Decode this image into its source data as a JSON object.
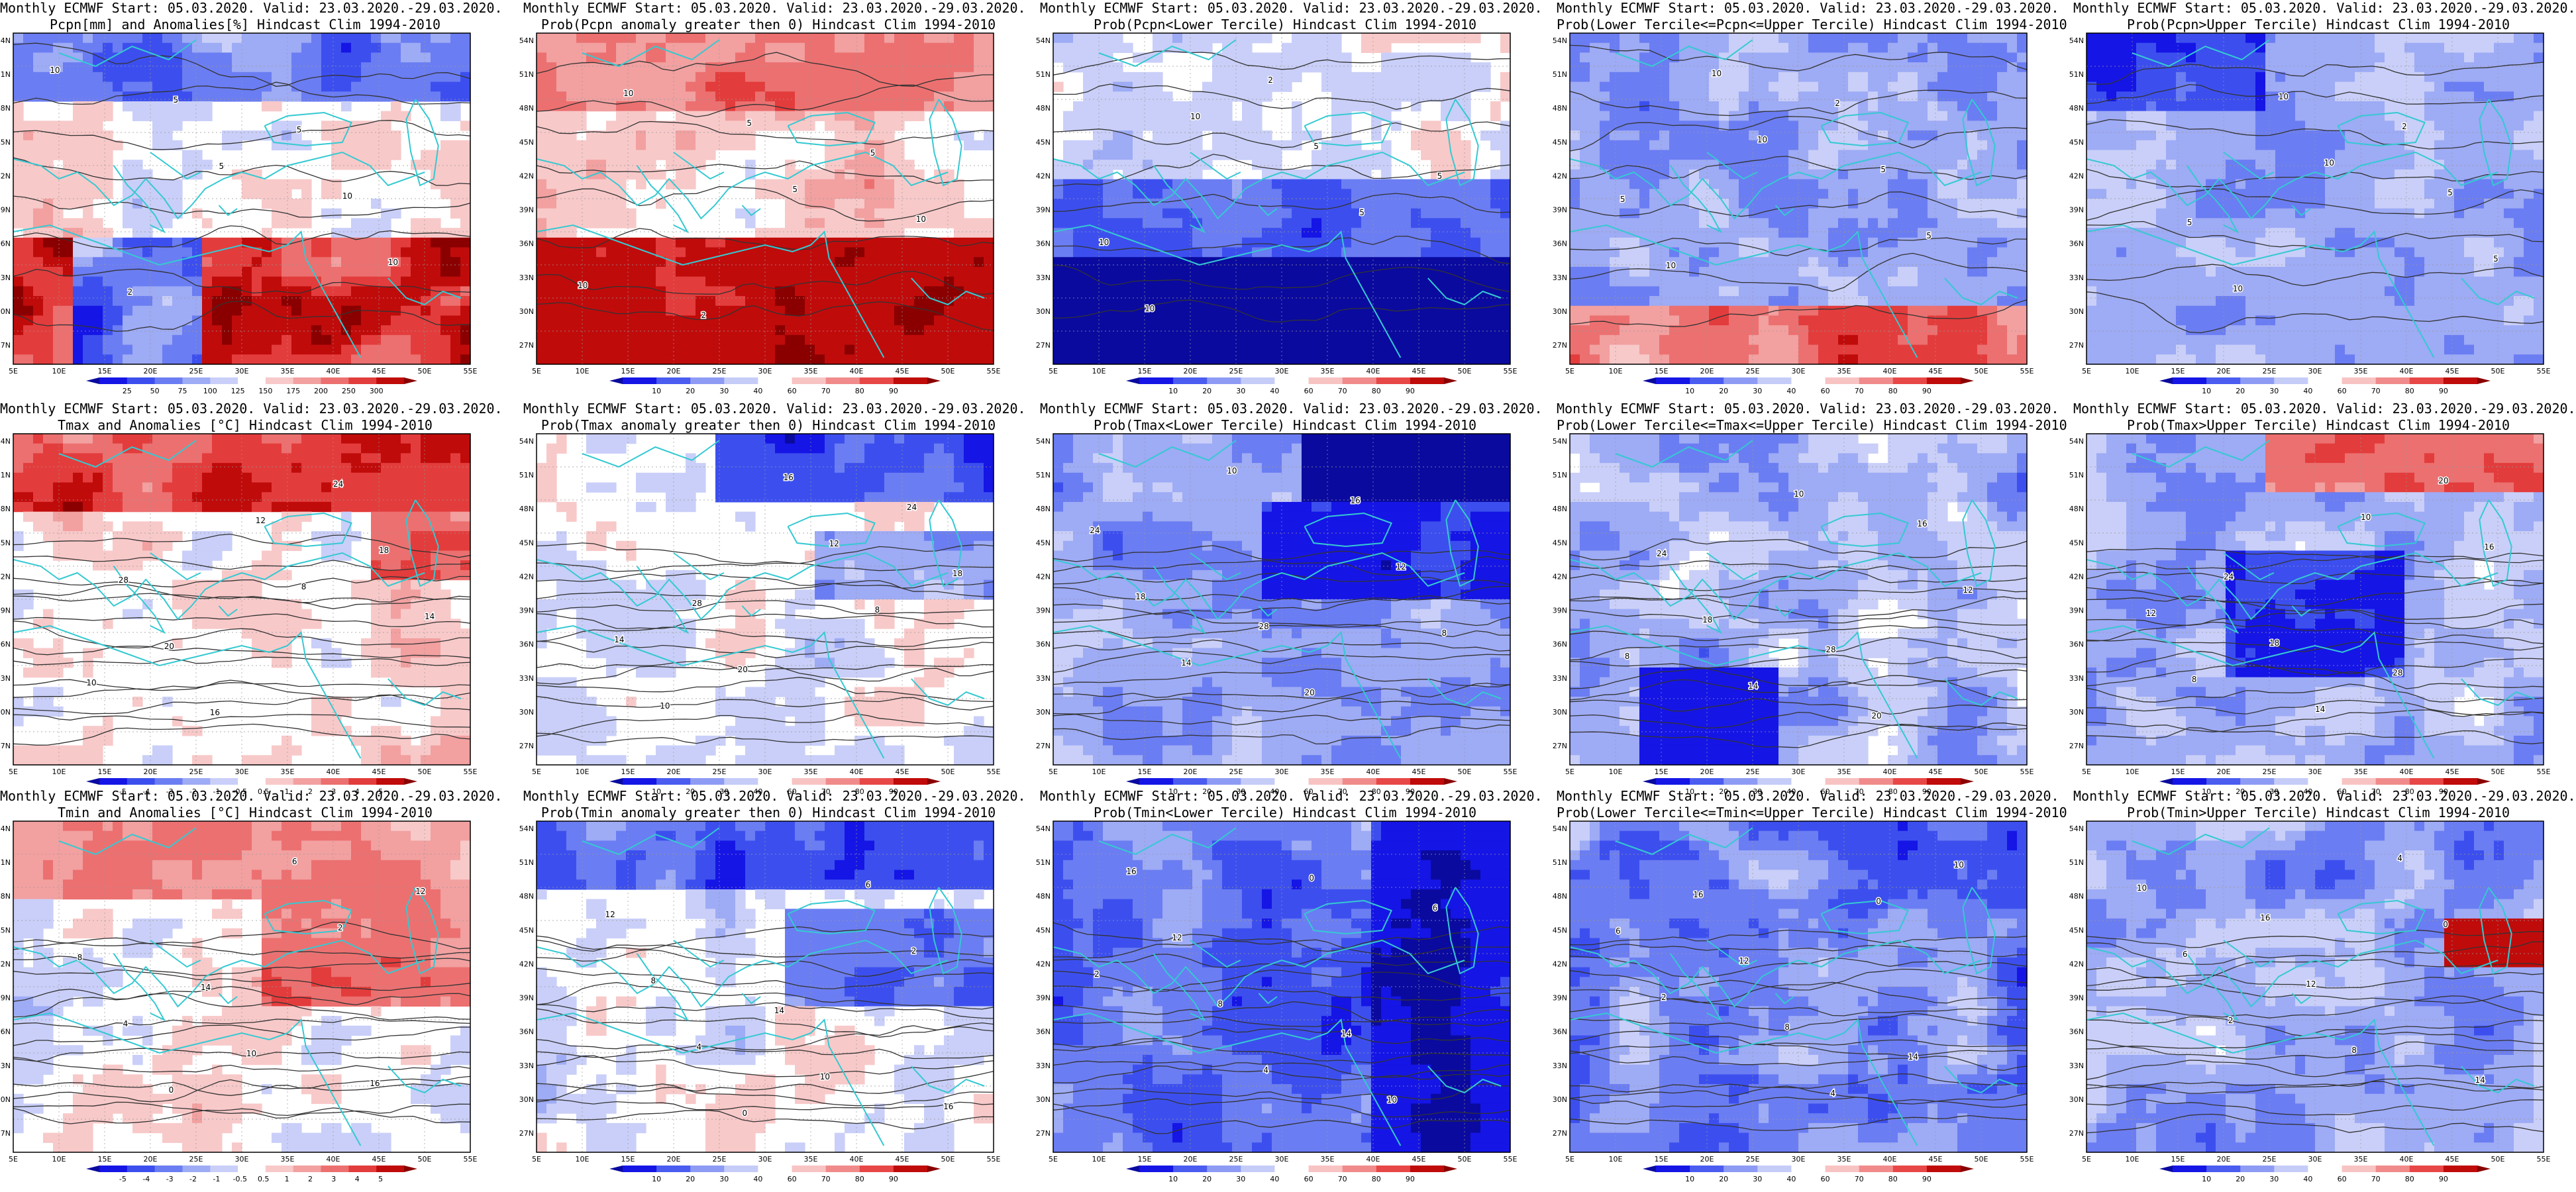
{
  "common": {
    "lat_labels": [
      "27N",
      "30N",
      "33N",
      "36N",
      "39N",
      "42N",
      "45N",
      "48N",
      "51N",
      "54N"
    ],
    "lon_labels": [
      "5E",
      "10E",
      "15E",
      "20E",
      "25E",
      "30E",
      "35E",
      "40E",
      "45E",
      "50E",
      "55E"
    ],
    "colorbar_colors_prob": [
      "#1515e6",
      "#4b5cf0",
      "#8d9bf5",
      "#c5ccf8",
      "#ffffff",
      "#f8c3c3",
      "#f18b8b",
      "#e84747",
      "#c00b0b"
    ],
    "colorbar_colors_anom": [
      "#1515e6",
      "#3c4fee",
      "#6b7df2",
      "#9eabf5",
      "#c9cff8",
      "#ffffff",
      "#f8c9c9",
      "#f2a0a0",
      "#ec7070",
      "#e33c3c",
      "#c00b0b"
    ],
    "contour_color": "#333333",
    "coast_color": "#35c9d2"
  },
  "panels": [
    {
      "title_line1": "Monthly ECMWF Start: 05.03.2020. Valid: 23.03.2020.-29.03.2020.",
      "title_line2": "Pcpn[mm] and Anomalies[%] Hindcast Clim 1994-2010",
      "colorbar_labels": [
        "25",
        "50",
        "75",
        "100",
        "125",
        "150",
        "175",
        "200",
        "250",
        "300"
      ],
      "style": "pcpn-anom",
      "contour_labels": [
        "10",
        "5",
        "10",
        "5",
        "10",
        "2",
        "5"
      ]
    },
    {
      "title_line1": "Monthly ECMWF Start: 05.03.2020. Valid: 23.03.2020.-29.03.2020.",
      "title_line2": "Prob(Pcpn anomaly greater then 0) Hindcast Clim 1994-2010",
      "colorbar_labels": [
        "10",
        "20",
        "30",
        "40",
        "60",
        "70",
        "80",
        "90"
      ],
      "style": "pcpn-prob-above",
      "contour_labels": [
        "10",
        "5",
        "10",
        "5",
        "10",
        "2",
        "5"
      ]
    },
    {
      "title_line1": "Monthly ECMWF Start: 05.03.2020. Valid: 23.03.2020.-29.03.2020.",
      "title_line2": "Prob(Pcpn<Lower Tercile) Hindcast Clim 1994-2010",
      "colorbar_labels": [
        "10",
        "20",
        "30",
        "40",
        "60",
        "70",
        "80",
        "90"
      ],
      "style": "pcpn-lower",
      "contour_labels": [
        "10",
        "5",
        "10",
        "5",
        "10",
        "2",
        "5"
      ]
    },
    {
      "title_line1": "Monthly ECMWF Start: 05.03.2020. Valid: 23.03.2020.-29.03.2020.",
      "title_line2": "Prob(Lower Tercile<=Pcpn<=Upper Tercile) Hindcast Clim 1994-2010",
      "colorbar_labels": [
        "10",
        "20",
        "30",
        "40",
        "60",
        "70",
        "80",
        "90"
      ],
      "style": "pcpn-middle",
      "contour_labels": [
        "10",
        "5",
        "10",
        "5",
        "10",
        "2",
        "5"
      ]
    },
    {
      "title_line1": "Monthly ECMWF Start: 05.03.2020. Valid: 23.03.2020.-29.03.2020.",
      "title_line2": "Prob(Pcpn>Upper Tercile) Hindcast Clim 1994-2010",
      "colorbar_labels": [
        "10",
        "20",
        "30",
        "40",
        "60",
        "70",
        "80",
        "90"
      ],
      "style": "pcpn-upper",
      "contour_labels": [
        "10",
        "5",
        "10",
        "5",
        "10",
        "2",
        "5"
      ]
    },
    {
      "title_line1": "Monthly ECMWF Start: 05.03.2020. Valid: 23.03.2020.-29.03.2020.",
      "title_line2": "Tmax and Anomalies [°C] Hindcast Clim 1994-2010",
      "colorbar_labels": [
        "-5",
        "-4",
        "-3",
        "-2",
        "-1",
        "-0.5",
        "0.5",
        "1",
        "2",
        "3",
        "4",
        "5"
      ],
      "style": "tmax-anom",
      "contour_labels": [
        "8",
        "10",
        "12",
        "14",
        "16",
        "18",
        "20",
        "24",
        "28"
      ]
    },
    {
      "title_line1": "Monthly ECMWF Start: 05.03.2020. Valid: 23.03.2020.-29.03.2020.",
      "title_line2": "Prob(Tmax anomaly greater then 0) Hindcast Clim 1994-2010",
      "colorbar_labels": [
        "10",
        "20",
        "30",
        "40",
        "60",
        "70",
        "80",
        "90"
      ],
      "style": "tmax-prob-above",
      "contour_labels": [
        "8",
        "10",
        "12",
        "14",
        "16",
        "18",
        "20",
        "24",
        "28"
      ]
    },
    {
      "title_line1": "Monthly ECMWF Start: 05.03.2020. Valid: 23.03.2020.-29.03.2020.",
      "title_line2": "Prob(Tmax<Lower Tercile) Hindcast Clim 1994-2010",
      "colorbar_labels": [
        "10",
        "20",
        "30",
        "40",
        "60",
        "70",
        "80",
        "90"
      ],
      "style": "tmax-lower",
      "contour_labels": [
        "8",
        "10",
        "12",
        "14",
        "16",
        "18",
        "20",
        "24",
        "28"
      ]
    },
    {
      "title_line1": "Monthly ECMWF Start: 05.03.2020. Valid: 23.03.2020.-29.03.2020.",
      "title_line2": "Prob(Lower Tercile<=Tmax<=Upper Tercile) Hindcast Clim 1994-2010",
      "colorbar_labels": [
        "10",
        "20",
        "30",
        "40",
        "60",
        "70",
        "80",
        "90"
      ],
      "style": "tmax-middle",
      "contour_labels": [
        "8",
        "10",
        "12",
        "14",
        "16",
        "18",
        "20",
        "24",
        "28"
      ]
    },
    {
      "title_line1": "Monthly ECMWF Start: 05.03.2020. Valid: 23.03.2020.-29.03.2020.",
      "title_line2": "Prob(Tmax>Upper Tercile) Hindcast Clim 1994-2010",
      "colorbar_labels": [
        "10",
        "20",
        "30",
        "40",
        "60",
        "70",
        "80",
        "90"
      ],
      "style": "tmax-upper",
      "contour_labels": [
        "8",
        "10",
        "12",
        "14",
        "16",
        "18",
        "20",
        "24",
        "28"
      ]
    },
    {
      "title_line1": "Monthly ECMWF Start: 05.03.2020. Valid: 23.03.2020.-29.03.2020.",
      "title_line2": "Tmin and Anomalies [°C] Hindcast Clim 1994-2010",
      "colorbar_labels": [
        "-5",
        "-4",
        "-3",
        "-2",
        "-1",
        "-0.5",
        "0.5",
        "1",
        "2",
        "3",
        "4",
        "5"
      ],
      "style": "tmin-anom",
      "contour_labels": [
        "0",
        "2",
        "4",
        "6",
        "8",
        "10",
        "12",
        "14",
        "16"
      ]
    },
    {
      "title_line1": "Monthly ECMWF Start: 05.03.2020. Valid: 23.03.2020.-29.03.2020.",
      "title_line2": "Prob(Tmin anomaly greater then 0) Hindcast Clim 1994-2010",
      "colorbar_labels": [
        "10",
        "20",
        "30",
        "40",
        "60",
        "70",
        "80",
        "90"
      ],
      "style": "tmin-prob-above",
      "contour_labels": [
        "0",
        "2",
        "4",
        "6",
        "8",
        "10",
        "12",
        "14",
        "16"
      ]
    },
    {
      "title_line1": "Monthly ECMWF Start: 05.03.2020. Valid: 23.03.2020.-29.03.2020.",
      "title_line2": "Prob(Tmin<Lower Tercile) Hindcast Clim 1994-2010",
      "colorbar_labels": [
        "10",
        "20",
        "30",
        "40",
        "60",
        "70",
        "80",
        "90"
      ],
      "style": "tmin-lower",
      "contour_labels": [
        "0",
        "2",
        "4",
        "6",
        "8",
        "10",
        "12",
        "14",
        "16"
      ]
    },
    {
      "title_line1": "Monthly ECMWF Start: 05.03.2020. Valid: 23.03.2020.-29.03.2020.",
      "title_line2": "Prob(Lower Tercile<=Tmin<=Upper Tercile) Hindcast Clim 1994-2010",
      "colorbar_labels": [
        "10",
        "20",
        "30",
        "40",
        "60",
        "70",
        "80",
        "90"
      ],
      "style": "tmin-middle",
      "contour_labels": [
        "0",
        "2",
        "4",
        "6",
        "8",
        "10",
        "12",
        "14",
        "16"
      ]
    },
    {
      "title_line1": "Monthly ECMWF Start: 05.03.2020. Valid: 23.03.2020.-29.03.2020.",
      "title_line2": "Prob(Tmin>Upper Tercile) Hindcast Clim 1994-2010",
      "colorbar_labels": [
        "10",
        "20",
        "30",
        "40",
        "60",
        "70",
        "80",
        "90"
      ],
      "style": "tmin-upper",
      "contour_labels": [
        "0",
        "2",
        "4",
        "6",
        "8",
        "10",
        "12",
        "14",
        "16"
      ]
    }
  ]
}
